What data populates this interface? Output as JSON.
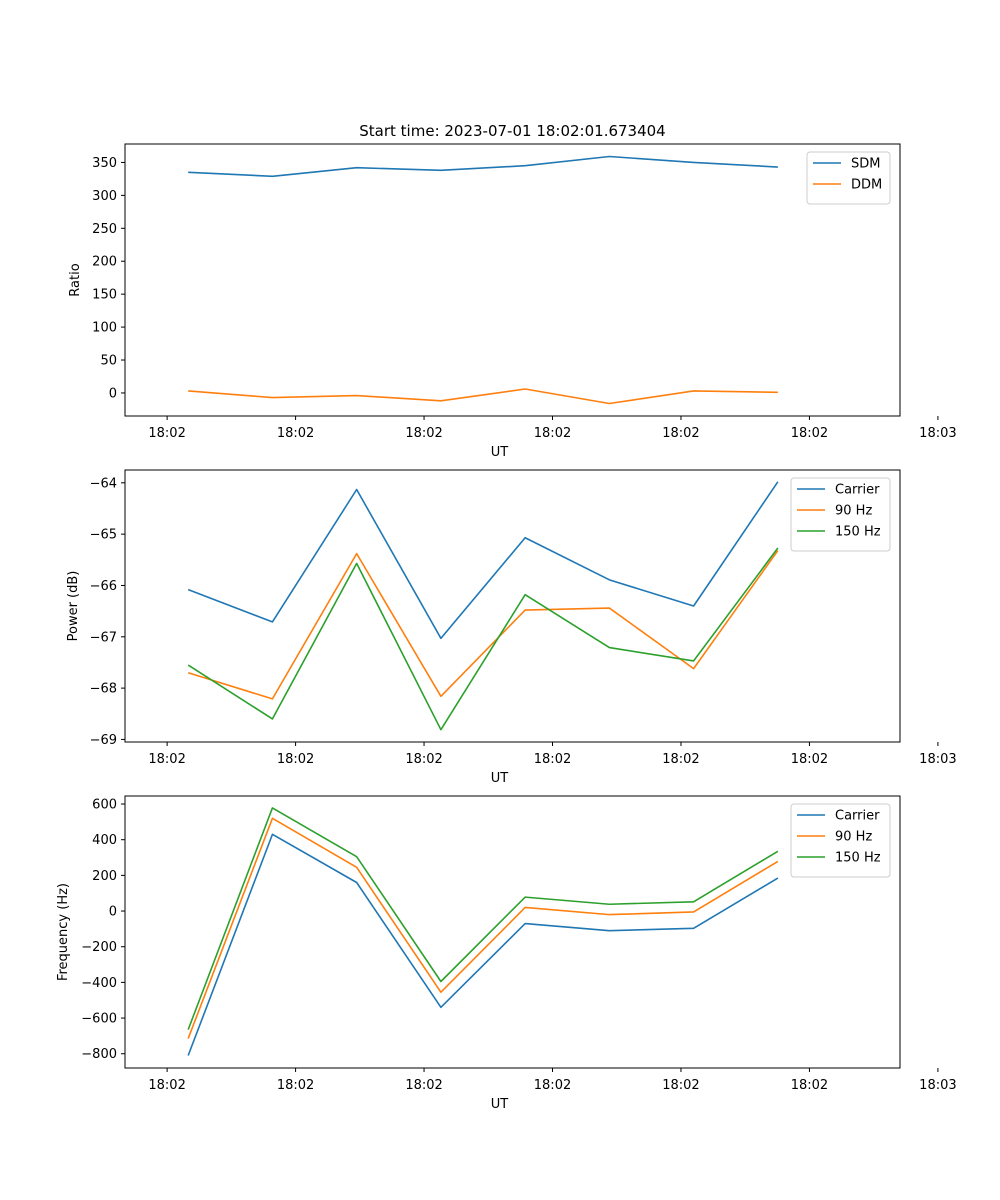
{
  "figure": {
    "title": "Start time: 2023-07-01 18:02:01.673404"
  },
  "chart_data": [
    {
      "type": "line",
      "title": "Start time: 2023-07-01 18:02:01.673404",
      "xlabel": "UT",
      "ylabel": "Ratio",
      "x_tick_labels": [
        "18:02",
        "18:02",
        "18:02",
        "18:02",
        "18:02",
        "18:02",
        "18:03"
      ],
      "xlim": [
        -0.75,
        8.45
      ],
      "x": [
        0,
        1,
        2,
        3,
        4,
        5,
        6,
        7
      ],
      "ylim": [
        -35,
        378
      ],
      "y_ticks": [
        0,
        50,
        100,
        150,
        200,
        250,
        300,
        350
      ],
      "y_tick_labels": [
        "0",
        "50",
        "100",
        "150",
        "200",
        "250",
        "300",
        "350"
      ],
      "legend_position": "upper-right",
      "series": [
        {
          "name": "SDM",
          "color": "#1f77b4",
          "values": [
            335,
            329,
            342,
            338,
            345,
            359,
            350,
            343
          ]
        },
        {
          "name": "DDM",
          "color": "#ff7f0e",
          "values": [
            3,
            -7,
            -4,
            -12,
            6,
            -16,
            3,
            1
          ]
        }
      ]
    },
    {
      "type": "line",
      "title": "",
      "xlabel": "UT",
      "ylabel": "Power (dB)",
      "x_tick_labels": [
        "18:02",
        "18:02",
        "18:02",
        "18:02",
        "18:02",
        "18:02",
        "18:03"
      ],
      "xlim": [
        -0.75,
        8.45
      ],
      "x": [
        0,
        1,
        2,
        3,
        4,
        5,
        6,
        7
      ],
      "ylim": [
        -69.05,
        -63.75
      ],
      "y_ticks": [
        -69,
        -68,
        -67,
        -66,
        -65,
        -64
      ],
      "y_tick_labels": [
        "−69",
        "−68",
        "−67",
        "−66",
        "−65",
        "−64"
      ],
      "legend_position": "upper-right",
      "series": [
        {
          "name": "Carrier",
          "color": "#1f77b4",
          "values": [
            -66.08,
            -66.71,
            -64.13,
            -67.03,
            -65.07,
            -65.89,
            -66.4,
            -63.98
          ]
        },
        {
          "name": "90 Hz",
          "color": "#ff7f0e",
          "values": [
            -67.7,
            -68.21,
            -65.38,
            -68.16,
            -66.48,
            -66.44,
            -67.62,
            -65.32
          ]
        },
        {
          "name": "150 Hz",
          "color": "#2ca02c",
          "values": [
            -67.55,
            -68.6,
            -65.57,
            -68.81,
            -66.18,
            -67.21,
            -67.47,
            -65.27
          ]
        }
      ]
    },
    {
      "type": "line",
      "title": "",
      "xlabel": "UT",
      "ylabel": "Frequency (Hz)",
      "x_tick_labels": [
        "18:02",
        "18:02",
        "18:02",
        "18:02",
        "18:02",
        "18:02",
        "18:03"
      ],
      "xlim": [
        -0.75,
        8.45
      ],
      "x": [
        0,
        1,
        2,
        3,
        4,
        5,
        6,
        7
      ],
      "ylim": [
        -880,
        645
      ],
      "y_ticks": [
        -800,
        -600,
        -400,
        -200,
        0,
        200,
        400,
        600
      ],
      "y_tick_labels": [
        "−800",
        "−600",
        "−400",
        "−200",
        "0",
        "200",
        "400",
        "600"
      ],
      "legend_position": "upper-right",
      "series": [
        {
          "name": "Carrier",
          "color": "#1f77b4",
          "values": [
            -810,
            430,
            160,
            -540,
            -70,
            -110,
            -97,
            185
          ]
        },
        {
          "name": "90 Hz",
          "color": "#ff7f0e",
          "values": [
            -715,
            520,
            245,
            -455,
            20,
            -20,
            -5,
            278
          ]
        },
        {
          "name": "150 Hz",
          "color": "#2ca02c",
          "values": [
            -665,
            578,
            305,
            -395,
            78,
            38,
            52,
            335
          ]
        }
      ]
    }
  ]
}
